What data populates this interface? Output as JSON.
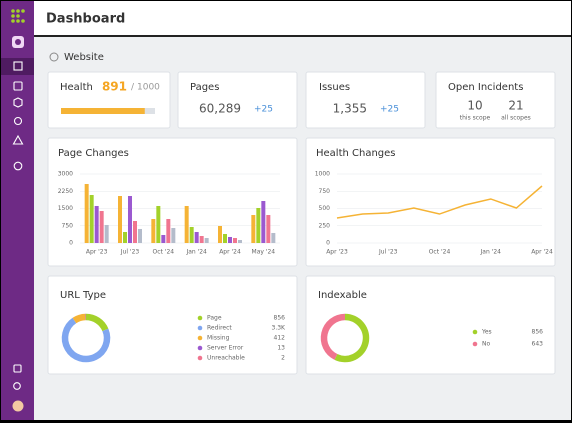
{
  "header": {
    "title": "Dashboard"
  },
  "section": {
    "title": "Website"
  },
  "health": {
    "label": "Health",
    "value": 891,
    "separator": "/",
    "total": 1000
  },
  "pages": {
    "label": "Pages",
    "value": "60,289",
    "delta": "+25"
  },
  "issues": {
    "label": "Issues",
    "value": "1,355",
    "delta": "+25"
  },
  "incidents": {
    "label": "Open Incidents",
    "items": [
      {
        "value": 10,
        "label": "this scope"
      },
      {
        "value": 21,
        "label": "all scopes"
      }
    ]
  },
  "chart_data": [
    {
      "type": "bar",
      "title": "Page Changes",
      "categories": [
        "Apr '23",
        "Jul '23",
        "Oct '24",
        "Jan '24",
        "Apr '24",
        "May '24"
      ],
      "series": [
        {
          "color": "#f5b335",
          "values": [
            2565,
            2043,
            1043,
            1609,
            739,
            1217
          ]
        },
        {
          "color": "#a3d12a",
          "values": [
            2087,
            478,
            1609,
            696,
            391,
            1522
          ]
        },
        {
          "color": "#9b59d0",
          "values": [
            1609,
            2043,
            348,
            478,
            261,
            1826
          ]
        },
        {
          "color": "#f0758f",
          "values": [
            1391,
            957,
            1043,
            304,
            217,
            1217
          ]
        },
        {
          "color": "#b4bccb",
          "values": [
            783,
            609,
            652,
            217,
            130,
            435
          ]
        }
      ],
      "ylim": [
        0,
        3000
      ],
      "yticks": [
        0,
        750,
        1500,
        2250,
        3000
      ],
      "grid": true
    },
    {
      "type": "line",
      "title": "Health Changes",
      "categories": [
        "Apr '23",
        null,
        "Jul '23",
        null,
        "Oct '24",
        null,
        "Jan '24",
        null,
        "Apr '24"
      ],
      "values": [
        362,
        420,
        435,
        507,
        420,
        551,
        638,
        507,
        826
      ],
      "color": "#f5b335",
      "ylim": [
        0,
        1000
      ],
      "yticks": [
        0,
        250,
        500,
        750,
        1000
      ],
      "grid": true
    },
    {
      "type": "pie",
      "title": "URL Type",
      "categories": [
        "Page",
        "Redirect",
        "Missing",
        "Server Error",
        "Unreachable"
      ],
      "values": [
        856,
        3300,
        412,
        13,
        2
      ],
      "value_labels": [
        "856",
        "3.3K",
        "412",
        "13",
        "2"
      ],
      "colors": [
        "#a3d12a",
        "#7fa6f0",
        "#f5b335",
        "#9b59d0",
        "#f0758f"
      ]
    },
    {
      "type": "pie",
      "title": "Indexable",
      "categories": [
        "Yes",
        "No"
      ],
      "values": [
        856,
        643
      ],
      "colors": [
        "#a3d12a",
        "#f0758f"
      ]
    }
  ]
}
